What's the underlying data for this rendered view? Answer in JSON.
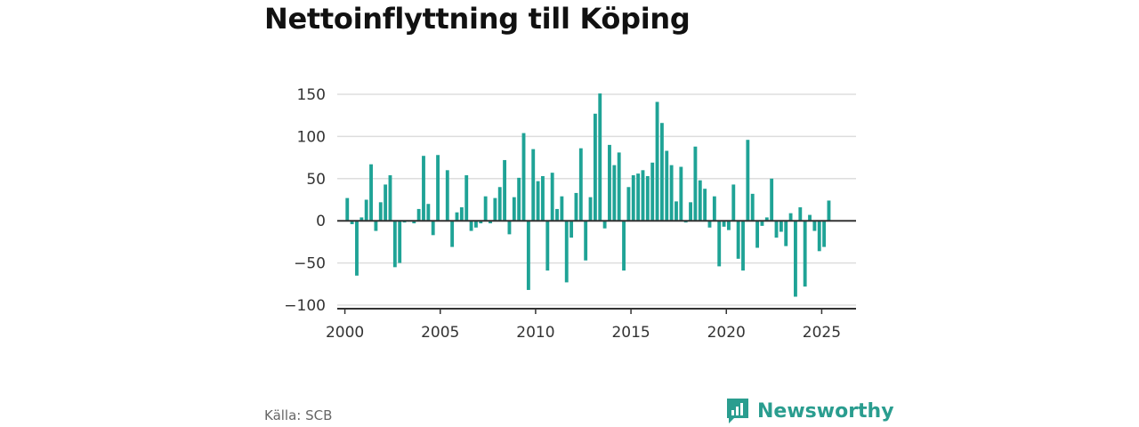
{
  "title": "Nettoinflyttning till Köping",
  "source": "Källa: SCB",
  "brand": "Newsworthy",
  "colors": {
    "bar": "#1fa396",
    "grid": "#dddddd",
    "zero_line": "#333333",
    "brand": "#2a9d8f"
  },
  "chart_data": {
    "type": "bar",
    "title": "Nettoinflyttning till Köping",
    "xlabel": "",
    "ylabel": "",
    "ylim": [
      -100,
      150
    ],
    "xlim": [
      1999.6,
      2026.8
    ],
    "yticks": [
      -100,
      -50,
      0,
      50,
      100,
      150
    ],
    "ytick_labels": [
      "−100",
      "−50",
      "0",
      "50",
      "100",
      "150"
    ],
    "xticks": [
      2000,
      2005,
      2010,
      2015,
      2020,
      2025
    ],
    "xtick_labels": [
      "2000",
      "2005",
      "2010",
      "2015",
      "2020",
      "2025"
    ],
    "grid": true,
    "x": [
      2000.125,
      2000.375,
      2000.625,
      2000.875,
      2001.125,
      2001.375,
      2001.625,
      2001.875,
      2002.125,
      2002.375,
      2002.625,
      2002.875,
      2003.125,
      2003.375,
      2003.625,
      2003.875,
      2004.125,
      2004.375,
      2004.625,
      2004.875,
      2005.125,
      2005.375,
      2005.625,
      2005.875,
      2006.125,
      2006.375,
      2006.625,
      2006.875,
      2007.125,
      2007.375,
      2007.625,
      2007.875,
      2008.125,
      2008.375,
      2008.625,
      2008.875,
      2009.125,
      2009.375,
      2009.625,
      2009.875,
      2010.125,
      2010.375,
      2010.625,
      2010.875,
      2011.125,
      2011.375,
      2011.625,
      2011.875,
      2012.125,
      2012.375,
      2012.625,
      2012.875,
      2013.125,
      2013.375,
      2013.625,
      2013.875,
      2014.125,
      2014.375,
      2014.625,
      2014.875,
      2015.125,
      2015.375,
      2015.625,
      2015.875,
      2016.125,
      2016.375,
      2016.625,
      2016.875,
      2017.125,
      2017.375,
      2017.625,
      2017.875,
      2018.125,
      2018.375,
      2018.625,
      2018.875,
      2019.125,
      2019.375,
      2019.625,
      2019.875,
      2020.125,
      2020.375,
      2020.625,
      2020.875,
      2021.125,
      2021.375,
      2021.625,
      2021.875,
      2022.125,
      2022.375,
      2022.625,
      2022.875,
      2023.125,
      2023.375,
      2023.625,
      2023.875,
      2024.125,
      2024.375,
      2024.625,
      2024.875,
      2025.125,
      2025.375
    ],
    "values": [
      27,
      -4,
      -65,
      4,
      25,
      67,
      -12,
      22,
      43,
      54,
      -55,
      -50,
      -2,
      -1,
      -3,
      14,
      77,
      20,
      -17,
      78,
      0,
      60,
      -31,
      10,
      16,
      54,
      -12,
      -8,
      -3,
      29,
      -3,
      27,
      40,
      72,
      -16,
      28,
      51,
      104,
      -82,
      85,
      47,
      53,
      -59,
      57,
      14,
      29,
      -73,
      -20,
      33,
      86,
      -47,
      28,
      127,
      151,
      -9,
      90,
      66,
      81,
      -59,
      40,
      54,
      56,
      60,
      53,
      69,
      141,
      116,
      83,
      66,
      23,
      64,
      -2,
      22,
      88,
      48,
      38,
      -8,
      29,
      -54,
      -7,
      -11,
      43,
      -45,
      -59,
      96,
      32,
      -32,
      -6,
      4,
      50,
      -20,
      -13,
      -30,
      9,
      -90,
      16,
      -78,
      7,
      -12,
      -36,
      -31,
      24
    ]
  }
}
